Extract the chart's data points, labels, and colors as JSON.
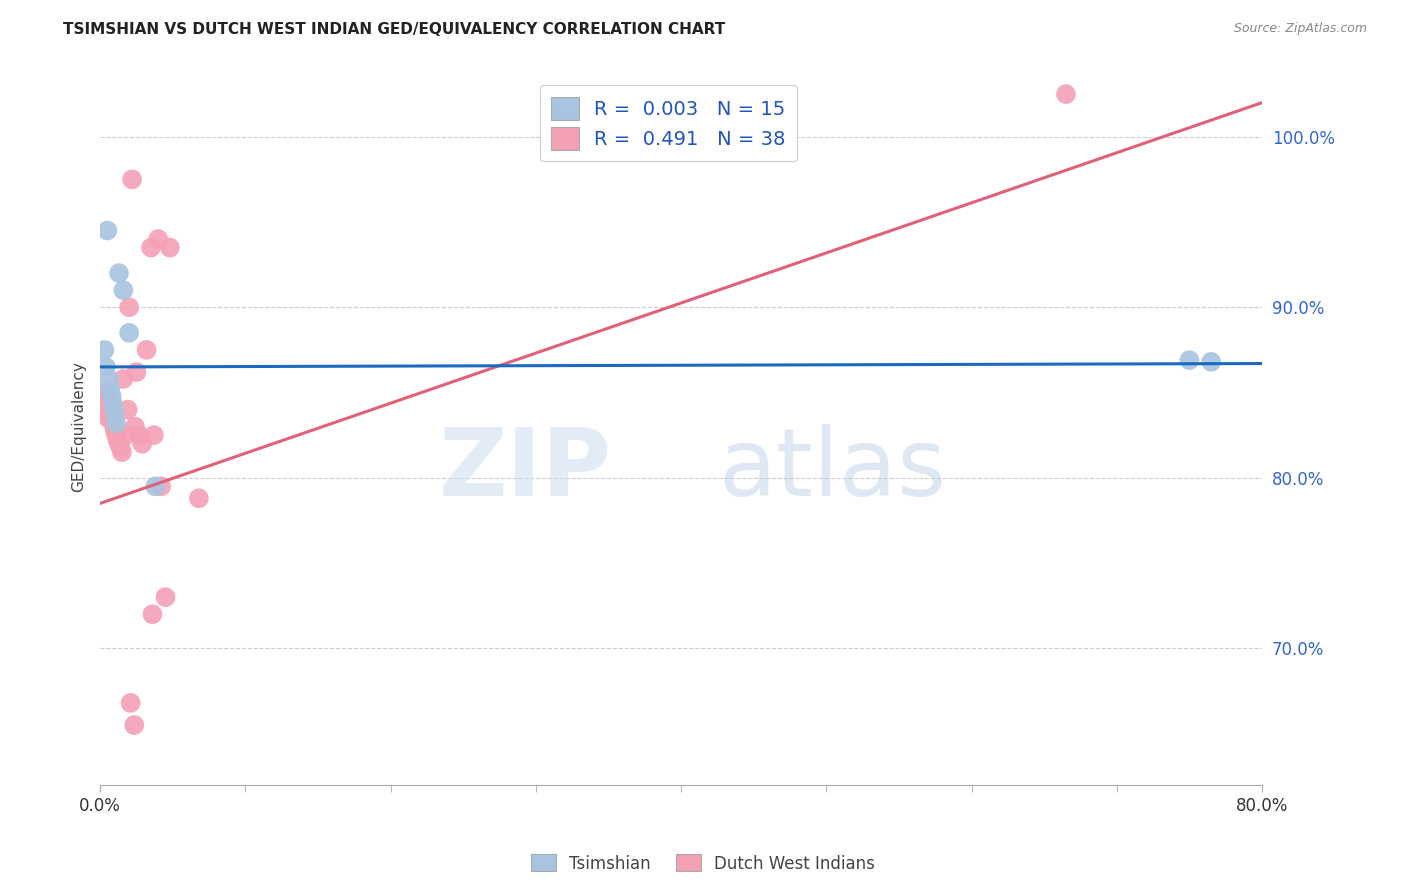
{
  "title": "TSIMSHIAN VS DUTCH WEST INDIAN GED/EQUIVALENCY CORRELATION CHART",
  "source": "Source: ZipAtlas.com",
  "ylabel": "GED/Equivalency",
  "xlim": [
    0.0,
    80.0
  ],
  "ylim": [
    62.0,
    104.0
  ],
  "legend_r_blue": "0.003",
  "legend_n_blue": "15",
  "legend_r_pink": "0.491",
  "legend_n_pink": "38",
  "blue_color": "#a8c4e0",
  "pink_color": "#f4a0b5",
  "line_blue_color": "#1a6bbf",
  "line_pink_color": "#e0607a",
  "blue_points_x": [
    0.5,
    1.3,
    2.0,
    0.3,
    0.4,
    0.6,
    0.7,
    0.8,
    0.9,
    1.0,
    1.1,
    3.8,
    75.0,
    76.5,
    1.6
  ],
  "blue_points_y": [
    94.5,
    92.0,
    88.5,
    87.5,
    86.5,
    85.8,
    85.2,
    84.8,
    84.3,
    83.8,
    83.2,
    79.5,
    86.9,
    86.8,
    91.0
  ],
  "pink_points_x": [
    2.2,
    3.5,
    4.0,
    4.8,
    0.2,
    0.3,
    0.4,
    0.5,
    0.6,
    0.7,
    0.8,
    0.9,
    1.0,
    1.1,
    1.2,
    1.3,
    1.4,
    1.5,
    1.8,
    2.4,
    2.7,
    2.9,
    3.2,
    3.7,
    1.6,
    0.35,
    0.45,
    0.55,
    1.9,
    2.5,
    4.2,
    6.8,
    2.1,
    2.35,
    3.6,
    4.5,
    66.5,
    2.0
  ],
  "pink_points_y": [
    97.5,
    93.5,
    94.0,
    93.5,
    84.5,
    85.0,
    84.8,
    84.5,
    84.0,
    83.8,
    83.5,
    83.2,
    82.8,
    82.5,
    82.2,
    82.0,
    81.8,
    81.5,
    82.5,
    83.0,
    82.5,
    82.0,
    87.5,
    82.5,
    85.8,
    84.5,
    84.0,
    83.5,
    84.0,
    86.2,
    79.5,
    78.8,
    66.8,
    65.5,
    72.0,
    73.0,
    102.5,
    90.0
  ],
  "blue_trend_x": [
    0.0,
    80.0
  ],
  "blue_trend_y": [
    86.5,
    86.7
  ],
  "pink_trend_x": [
    0.0,
    80.0
  ],
  "pink_trend_y": [
    78.5,
    102.0
  ],
  "ytick_positions": [
    70.0,
    80.0,
    90.0,
    100.0
  ],
  "ytick_labels": [
    "70.0%",
    "80.0%",
    "90.0%",
    "100.0%"
  ],
  "xtick_positions": [
    0.0,
    80.0
  ],
  "xtick_labels": [
    "0.0%",
    "80.0%"
  ],
  "minor_xticks": [
    10,
    20,
    30,
    40,
    50,
    60,
    70
  ]
}
